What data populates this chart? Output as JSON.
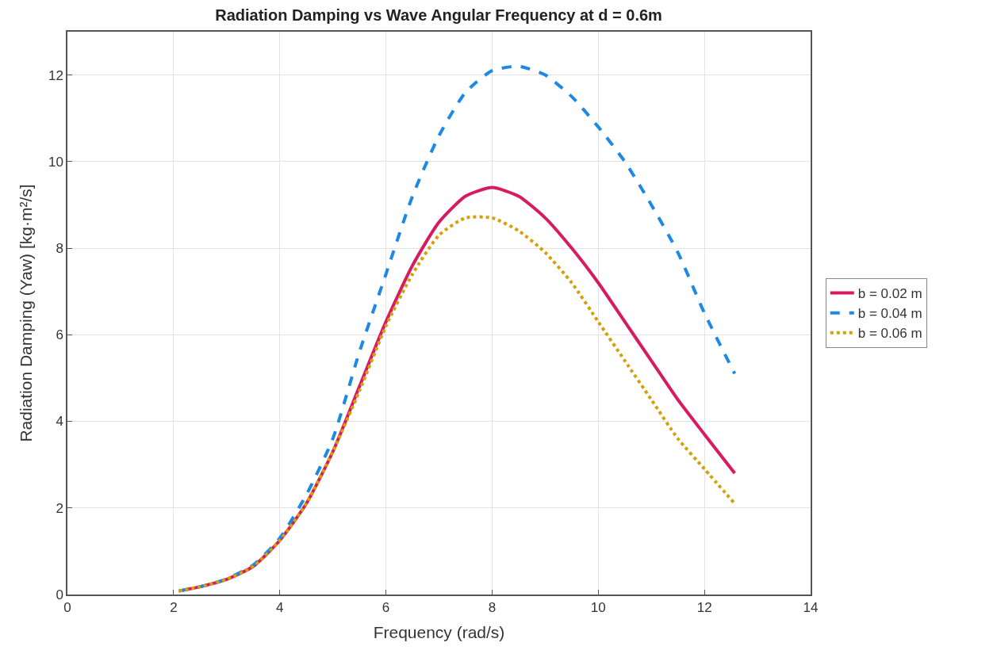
{
  "chart_data": {
    "type": "line",
    "title": "Radiation Damping vs Wave Angular Frequency at d = 0.6m",
    "xlabel": "Frequency (rad/s)",
    "ylabel": "Radiation Damping (Yaw) [kg·m²/s]",
    "x": [
      2.1,
      2.5,
      3,
      3.5,
      4,
      4.5,
      5,
      5.5,
      6,
      6.5,
      7,
      7.5,
      8,
      8.5,
      9,
      9.5,
      10,
      10.5,
      11,
      11.5,
      12,
      12.57
    ],
    "series": [
      {
        "name": "b = 0.02 m",
        "color": "#d81b60",
        "line_style": "solid",
        "values": [
          0.08,
          0.18,
          0.35,
          0.65,
          1.25,
          2.1,
          3.3,
          4.8,
          6.3,
          7.6,
          8.6,
          9.2,
          9.4,
          9.2,
          8.7,
          8.0,
          7.2,
          6.3,
          5.4,
          4.5,
          3.7,
          2.8
        ]
      },
      {
        "name": "b = 0.04 m",
        "color": "#1e88e5",
        "line_style": "dashed",
        "values": [
          0.08,
          0.18,
          0.36,
          0.68,
          1.3,
          2.3,
          3.6,
          5.6,
          7.4,
          9.2,
          10.6,
          11.6,
          12.1,
          12.2,
          12.0,
          11.5,
          10.8,
          10.0,
          9.0,
          7.9,
          6.5,
          5.1
        ]
      },
      {
        "name": "b = 0.06 m",
        "color": "#d4a00b",
        "line_style": "dotted",
        "values": [
          0.08,
          0.18,
          0.35,
          0.65,
          1.25,
          2.1,
          3.3,
          4.7,
          6.2,
          7.4,
          8.3,
          8.7,
          8.7,
          8.4,
          7.9,
          7.2,
          6.3,
          5.4,
          4.5,
          3.6,
          2.9,
          2.1
        ]
      }
    ],
    "xlim": [
      0,
      14
    ],
    "xticks": [
      0,
      2,
      4,
      6,
      8,
      10,
      12,
      14
    ],
    "ylim": [
      0,
      13
    ],
    "yticks": [
      0,
      2,
      4,
      6,
      8,
      10,
      12
    ],
    "grid": true,
    "legend": "right"
  }
}
